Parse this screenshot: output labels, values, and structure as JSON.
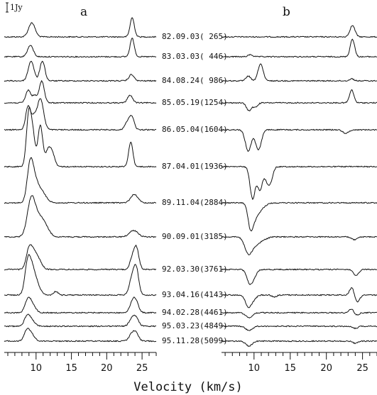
{
  "chart_data": {
    "type": "line",
    "title": "",
    "xlabel": "Velocity (km/s)",
    "ylabel": "",
    "scale_bar": "1Jy",
    "xlim": [
      5.5,
      27
    ],
    "xticks": [
      "10",
      "15",
      "20",
      "25"
    ],
    "grid": false,
    "panels": [
      {
        "name": "a"
      },
      {
        "name": "b"
      }
    ],
    "epochs": [
      {
        "label": "82.09.03( 265)",
        "a": [
          {
            "v": 9.4,
            "h": 20,
            "w": 0.45
          },
          {
            "v": 23.6,
            "h": 27,
            "w": 0.3
          }
        ],
        "b": [
          {
            "v": 23.6,
            "h": 16,
            "w": 0.35
          }
        ]
      },
      {
        "label": "83.03.03( 446)",
        "a": [
          {
            "v": 9.2,
            "h": 16,
            "w": 0.4
          },
          {
            "v": 23.6,
            "h": 26,
            "w": 0.3
          }
        ],
        "b": [
          {
            "v": 9.5,
            "h": 3,
            "w": 0.3
          },
          {
            "v": 23.6,
            "h": 25,
            "w": 0.3
          }
        ]
      },
      {
        "label": "84.08.24( 986)",
        "a": [
          {
            "v": 9.3,
            "h": 28,
            "w": 0.4
          },
          {
            "v": 10.9,
            "h": 28,
            "w": 0.35
          },
          {
            "v": 23.5,
            "h": 9,
            "w": 0.35
          }
        ],
        "b": [
          {
            "v": 9.2,
            "h": 7,
            "w": 0.3
          },
          {
            "v": 10.9,
            "h": 24,
            "w": 0.35
          },
          {
            "v": 23.5,
            "h": 3,
            "w": 0.3
          }
        ]
      },
      {
        "label": "85.05.19(1254)",
        "a": [
          {
            "v": 8.9,
            "h": 18,
            "w": 0.35
          },
          {
            "v": 9.8,
            "h": 10,
            "w": 0.3
          },
          {
            "v": 10.8,
            "h": 31,
            "w": 0.35
          },
          {
            "v": 23.3,
            "h": 11,
            "w": 0.35
          }
        ],
        "b": [
          {
            "v": 9.3,
            "h": -11,
            "w": 0.35
          },
          {
            "v": 10.2,
            "h": -6,
            "w": 0.3
          },
          {
            "v": 23.5,
            "h": 18,
            "w": 0.3
          }
        ]
      },
      {
        "label": "86.05.04(1604)",
        "a": [
          {
            "v": 8.9,
            "h": 34,
            "w": 0.35
          },
          {
            "v": 9.7,
            "h": 15,
            "w": 0.3
          },
          {
            "v": 10.6,
            "h": 44,
            "w": 0.45
          },
          {
            "v": 22.8,
            "h": 9,
            "w": 0.3
          },
          {
            "v": 23.5,
            "h": 20,
            "w": 0.35
          }
        ],
        "b": [
          {
            "v": 9.2,
            "h": -30,
            "w": 0.4
          },
          {
            "v": 10.6,
            "h": -28,
            "w": 0.4
          },
          {
            "v": 22.7,
            "h": -5,
            "w": 0.4
          }
        ]
      },
      {
        "label": "87.04.01(1936)",
        "a": [
          {
            "v": 9.0,
            "h": 78,
            "w": 0.35
          },
          {
            "v": 9.6,
            "h": 35,
            "w": 0.3
          },
          {
            "v": 10.6,
            "h": 58,
            "w": 0.35
          },
          {
            "v": 11.7,
            "h": 22,
            "w": 0.35
          },
          {
            "v": 12.3,
            "h": 18,
            "w": 0.35
          },
          {
            "v": 23.4,
            "h": 35,
            "w": 0.3
          }
        ],
        "b": [
          {
            "v": 9.8,
            "h": -45,
            "w": 0.35
          },
          {
            "v": 10.8,
            "h": -32,
            "w": 0.35
          },
          {
            "v": 11.9,
            "h": -22,
            "w": 0.4
          },
          {
            "v": 12.4,
            "h": -10,
            "w": 0.3
          }
        ]
      },
      {
        "label": "89.11.04(2884)",
        "a": [
          {
            "v": 9.1,
            "h": 40,
            "w": 0.4
          },
          {
            "v": 9.6,
            "h": 30,
            "w": 0.5
          },
          {
            "v": 10.6,
            "h": 18,
            "w": 0.7
          },
          {
            "v": 23.9,
            "h": 12,
            "w": 0.5
          }
        ],
        "b": [
          {
            "v": 9.5,
            "h": -30,
            "w": 0.35
          },
          {
            "v": 10.1,
            "h": -18,
            "w": 0.5
          },
          {
            "v": 11.0,
            "h": -7,
            "w": 0.6
          }
        ]
      },
      {
        "label": "90.09.01(3185)",
        "a": [
          {
            "v": 9.3,
            "h": 50,
            "w": 0.55
          },
          {
            "v": 10.4,
            "h": 25,
            "w": 0.7
          },
          {
            "v": 11.4,
            "h": 9,
            "w": 0.6
          },
          {
            "v": 23.8,
            "h": 9,
            "w": 0.6
          }
        ],
        "b": [
          {
            "v": 9.2,
            "h": -22,
            "w": 0.5
          },
          {
            "v": 10.2,
            "h": -10,
            "w": 0.6
          },
          {
            "v": 11.3,
            "h": -3,
            "w": 0.6
          },
          {
            "v": 23.9,
            "h": -4,
            "w": 0.4
          }
        ]
      },
      {
        "label": "92.03.30(3761)",
        "a": [
          {
            "v": 9.0,
            "h": 26,
            "w": 0.4
          },
          {
            "v": 9.7,
            "h": 20,
            "w": 0.5
          },
          {
            "v": 10.4,
            "h": 9,
            "w": 0.5
          },
          {
            "v": 23.6,
            "h": 14,
            "w": 0.35
          },
          {
            "v": 24.2,
            "h": 30,
            "w": 0.35
          }
        ],
        "b": [
          {
            "v": 9.4,
            "h": -18,
            "w": 0.4
          },
          {
            "v": 10.0,
            "h": -8,
            "w": 0.4
          },
          {
            "v": 24.1,
            "h": -9,
            "w": 0.35
          }
        ]
      },
      {
        "label": "93.04.16(4143)",
        "a": [
          {
            "v": 8.8,
            "h": 40,
            "w": 0.4
          },
          {
            "v": 9.4,
            "h": 30,
            "w": 0.45
          },
          {
            "v": 10.1,
            "h": 14,
            "w": 0.5
          },
          {
            "v": 12.8,
            "h": 5,
            "w": 0.3
          },
          {
            "v": 23.6,
            "h": 24,
            "w": 0.4
          },
          {
            "v": 24.2,
            "h": 33,
            "w": 0.35
          }
        ],
        "b": [
          {
            "v": 9.2,
            "h": -16,
            "w": 0.4
          },
          {
            "v": 9.9,
            "h": -6,
            "w": 0.4
          },
          {
            "v": 12.8,
            "h": -3,
            "w": 0.3
          },
          {
            "v": 23.6,
            "h": 12,
            "w": 0.35
          },
          {
            "v": 24.2,
            "h": -12,
            "w": 0.35
          }
        ]
      },
      {
        "label": "94.02.28(4461)",
        "a": [
          {
            "v": 8.8,
            "h": 15,
            "w": 0.4
          },
          {
            "v": 9.4,
            "h": 12,
            "w": 0.5
          },
          {
            "v": 23.6,
            "h": 11,
            "w": 0.4
          },
          {
            "v": 24.1,
            "h": 15,
            "w": 0.4
          }
        ],
        "b": [
          {
            "v": 9.3,
            "h": -7,
            "w": 0.45
          },
          {
            "v": 23.5,
            "h": 6,
            "w": 0.35
          },
          {
            "v": 24.1,
            "h": -4,
            "w": 0.35
          }
        ]
      },
      {
        "label": "95.03.23(4849)",
        "a": [
          {
            "v": 8.7,
            "h": 11,
            "w": 0.4
          },
          {
            "v": 9.3,
            "h": 9,
            "w": 0.5
          },
          {
            "v": 23.5,
            "h": 8,
            "w": 0.4
          },
          {
            "v": 24.1,
            "h": 12,
            "w": 0.4
          }
        ],
        "b": [
          {
            "v": 9.3,
            "h": -6,
            "w": 0.45
          },
          {
            "v": 24.0,
            "h": -3,
            "w": 0.35
          }
        ]
      },
      {
        "label": "95.11.28(5099)",
        "a": [
          {
            "v": 8.7,
            "h": 13,
            "w": 0.4
          },
          {
            "v": 9.3,
            "h": 9,
            "w": 0.5
          },
          {
            "v": 23.5,
            "h": 8,
            "w": 0.4
          },
          {
            "v": 24.1,
            "h": 11,
            "w": 0.4
          }
        ],
        "b": [
          {
            "v": 9.3,
            "h": -7,
            "w": 0.45
          },
          {
            "v": 24.0,
            "h": -3,
            "w": 0.35
          }
        ]
      }
    ]
  }
}
